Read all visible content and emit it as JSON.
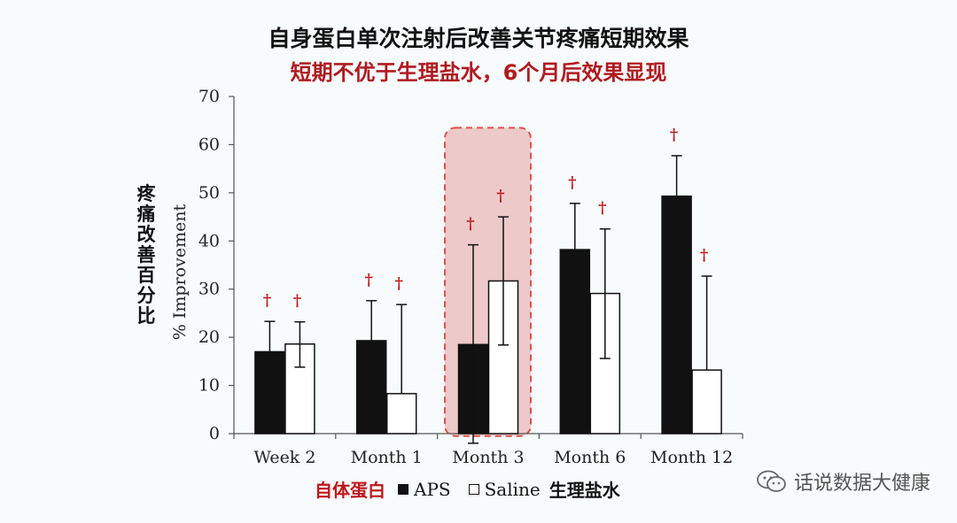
{
  "header": {
    "title": "自身蛋白单次注射后改善关节疼痛短期效果",
    "subtitle": "短期不优于生理盐水，6个月后效果显现"
  },
  "axis": {
    "ylabel": "% Improvement",
    "ylabel_cn": "疼痛改善百分比"
  },
  "legend": {
    "aps_cn": "自体蛋白",
    "aps": "APS",
    "saline": "Saline",
    "saline_cn": "生理盐水"
  },
  "watermark": {
    "text": "话说数据大健康",
    "icon": "wechat-icon"
  },
  "colors": {
    "aps": "#111111",
    "saline": "#ffffff",
    "dagger": "#c0161d",
    "highlight_fill": "#e9b8b8",
    "highlight_border": "#d9534f"
  },
  "chart_data": {
    "type": "bar",
    "categories": [
      "Week 2",
      "Month 1",
      "Month 3",
      "Month 6",
      "Month 12"
    ],
    "series": [
      {
        "name": "APS",
        "values": [
          17,
          19.3,
          18.5,
          38.2,
          49.3
        ],
        "error_upper": [
          23.3,
          27.6,
          39.2,
          47.8,
          57.7
        ],
        "error_lower": [
          null,
          null,
          -2,
          null,
          null
        ]
      },
      {
        "name": "Saline",
        "values": [
          18.6,
          8.3,
          31.7,
          29.1,
          13.2
        ],
        "error_upper": [
          23.2,
          26.8,
          45,
          42.5,
          32.7
        ],
        "error_lower": [
          13.8,
          null,
          18.4,
          15.6,
          null
        ]
      }
    ],
    "significance_marker": "†",
    "highlighted_category": "Month 3",
    "ylim": [
      0,
      70
    ],
    "yticks": [
      0,
      10,
      20,
      30,
      40,
      50,
      60,
      70
    ],
    "xlabel": "",
    "ylabel": "% Improvement",
    "grid": false,
    "legend_position": "bottom"
  }
}
